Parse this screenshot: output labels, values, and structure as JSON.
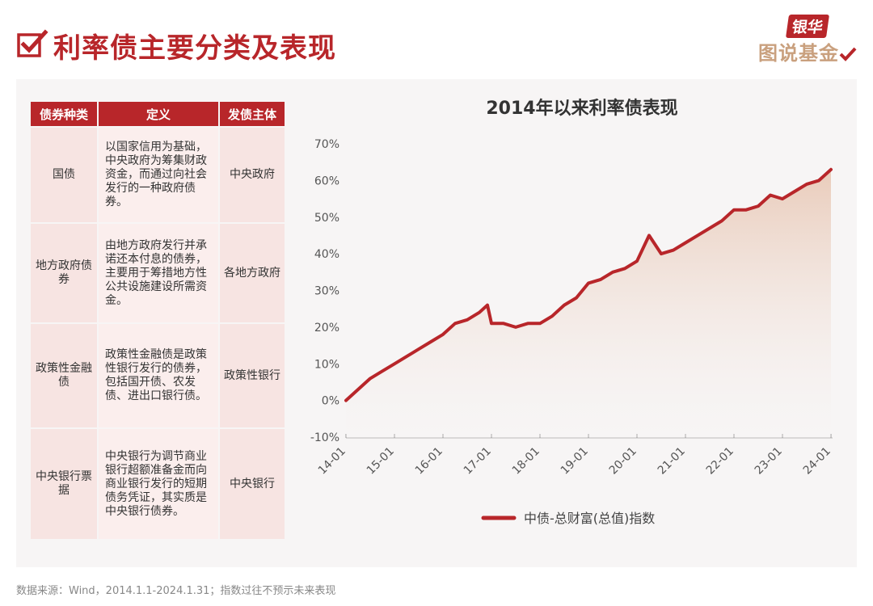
{
  "header": {
    "title": "利率债主要分类及表现",
    "logo_top": "银华",
    "logo_bottom": "图说基金"
  },
  "table": {
    "headers": [
      "债券种类",
      "定义",
      "发债主体"
    ],
    "rows": [
      {
        "type": "国债",
        "definition": "以国家信用为基础，中央政府为筹集财政资金，而通过向社会发行的一种政府债券。",
        "issuer": "中央政府"
      },
      {
        "type": "地方政府债券",
        "definition": "由地方政府发行并承诺还本付息的债券，主要用于筹措地方性公共设施建设所需资金。",
        "issuer": "各地方政府"
      },
      {
        "type": "政策性金融债",
        "definition": "政策性金融债是政策性银行发行的债券，包括国开债、农发债、进出口银行债。",
        "issuer": "政策性银行"
      },
      {
        "type": "中央银行票据",
        "definition": "中央银行为调节商业银行超额准备金而向商业银行发行的短期债务凭证，其实质是中央银行债券。",
        "issuer": "中央银行"
      }
    ]
  },
  "chart_data": {
    "type": "line",
    "title": "2014年以来利率债表现",
    "xlabel": "",
    "ylabel": "",
    "x_ticks": [
      "14-01",
      "15-01",
      "16-01",
      "17-01",
      "18-01",
      "19-01",
      "20-01",
      "21-01",
      "22-01",
      "23-01",
      "24-01"
    ],
    "y_ticks": [
      "70%",
      "60%",
      "50%",
      "40%",
      "30%",
      "20%",
      "10%",
      "0%",
      "-10%"
    ],
    "ylim": [
      -10,
      70
    ],
    "xlim": [
      "2014-01",
      "2024-01"
    ],
    "series": [
      {
        "name": "中债-总财富(总值)指数",
        "color": "#b8262a",
        "x": [
          "2014-01",
          "2014-04",
          "2014-07",
          "2014-10",
          "2015-01",
          "2015-04",
          "2015-07",
          "2015-10",
          "2016-01",
          "2016-04",
          "2016-07",
          "2016-10",
          "2016-12",
          "2017-01",
          "2017-04",
          "2017-07",
          "2017-10",
          "2018-01",
          "2018-04",
          "2018-07",
          "2018-10",
          "2019-01",
          "2019-04",
          "2019-07",
          "2019-10",
          "2020-01",
          "2020-04",
          "2020-07",
          "2020-10",
          "2021-01",
          "2021-04",
          "2021-07",
          "2021-10",
          "2022-01",
          "2022-04",
          "2022-07",
          "2022-10",
          "2023-01",
          "2023-04",
          "2023-07",
          "2023-10",
          "2024-01"
        ],
        "values": [
          0,
          3,
          6,
          8,
          10,
          12,
          14,
          16,
          18,
          21,
          22,
          24,
          26,
          21,
          21,
          20,
          21,
          21,
          23,
          26,
          28,
          32,
          33,
          35,
          36,
          38,
          45,
          40,
          41,
          43,
          45,
          47,
          49,
          52,
          52,
          53,
          56,
          55,
          57,
          59,
          60,
          63
        ]
      }
    ],
    "legend": "bottom",
    "grid": false
  },
  "footer": {
    "source": "数据来源：Wind，2014.1.1-2024.1.31；指数过往不预示未来表现"
  }
}
